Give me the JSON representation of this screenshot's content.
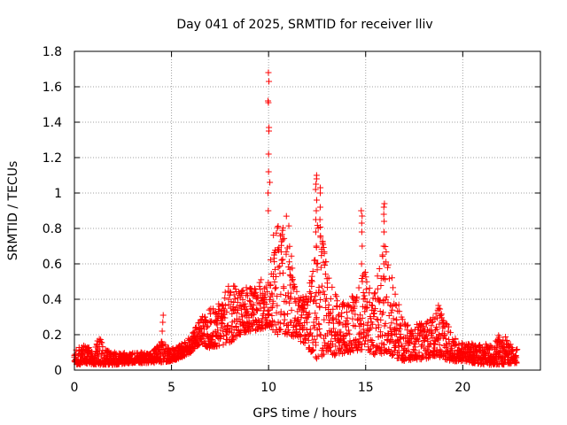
{
  "chart_data": {
    "type": "scatter",
    "title": "Day 041 of 2025, SRMTID for receiver lliv",
    "xlabel": "GPS time / hours",
    "ylabel": "SRMTID / TECUs",
    "xlim": [
      0,
      24
    ],
    "ylim": [
      0,
      1.8
    ],
    "xticks": [
      0,
      5,
      10,
      15,
      20
    ],
    "xtick_labels": [
      "0",
      "5",
      "10",
      "15",
      "20"
    ],
    "yticks": [
      0,
      0.2,
      0.4,
      0.6,
      0.8,
      1.0,
      1.2,
      1.4,
      1.6,
      1.8
    ],
    "ytick_labels": [
      "0",
      "0.2",
      "0.4",
      "0.6",
      "0.8",
      "1",
      "1.2",
      "1.4",
      "1.6",
      "1.8"
    ],
    "grid": true,
    "marker": "+",
    "color": "#ff0000",
    "envelope": {
      "description": "approximate upper/lower bounds of the plotted point cloud in data units",
      "upper": [
        [
          0,
          0.12
        ],
        [
          0.5,
          0.14
        ],
        [
          1,
          0.13
        ],
        [
          1.3,
          0.19
        ],
        [
          1.5,
          0.12
        ],
        [
          2,
          0.1
        ],
        [
          3,
          0.1
        ],
        [
          4,
          0.1
        ],
        [
          4.5,
          0.18
        ],
        [
          5,
          0.12
        ],
        [
          5.5,
          0.15
        ],
        [
          6,
          0.2
        ],
        [
          6.5,
          0.3
        ],
        [
          7,
          0.35
        ],
        [
          7.5,
          0.38
        ],
        [
          8,
          0.5
        ],
        [
          8.5,
          0.45
        ],
        [
          9,
          0.48
        ],
        [
          9.5,
          0.52
        ],
        [
          10,
          0.5
        ],
        [
          10.3,
          0.88
        ],
        [
          10.6,
          0.8
        ],
        [
          11,
          0.9
        ],
        [
          11.3,
          0.5
        ],
        [
          11.6,
          0.4
        ],
        [
          12,
          0.45
        ],
        [
          12.3,
          0.6
        ],
        [
          12.6,
          0.9
        ],
        [
          13,
          0.6
        ],
        [
          13.5,
          0.42
        ],
        [
          14,
          0.38
        ],
        [
          14.5,
          0.45
        ],
        [
          15,
          0.6
        ],
        [
          15.3,
          0.4
        ],
        [
          15.6,
          0.55
        ],
        [
          16,
          0.7
        ],
        [
          16.5,
          0.45
        ],
        [
          17,
          0.28
        ],
        [
          17.5,
          0.25
        ],
        [
          18,
          0.28
        ],
        [
          18.5,
          0.3
        ],
        [
          18.8,
          0.38
        ],
        [
          19,
          0.3
        ],
        [
          19.5,
          0.2
        ],
        [
          20,
          0.15
        ],
        [
          21,
          0.15
        ],
        [
          21.5,
          0.14
        ],
        [
          22,
          0.22
        ],
        [
          22.5,
          0.14
        ],
        [
          22.8,
          0.12
        ]
      ],
      "lower": [
        [
          0,
          0.03
        ],
        [
          1,
          0.03
        ],
        [
          2,
          0.03
        ],
        [
          3,
          0.04
        ],
        [
          4,
          0.04
        ],
        [
          5,
          0.05
        ],
        [
          5.5,
          0.07
        ],
        [
          6,
          0.1
        ],
        [
          6.5,
          0.15
        ],
        [
          7,
          0.12
        ],
        [
          7.5,
          0.14
        ],
        [
          8,
          0.15
        ],
        [
          8.5,
          0.2
        ],
        [
          9,
          0.22
        ],
        [
          9.5,
          0.22
        ],
        [
          10,
          0.25
        ],
        [
          10.5,
          0.2
        ],
        [
          11,
          0.2
        ],
        [
          11.5,
          0.18
        ],
        [
          12,
          0.12
        ],
        [
          12.5,
          0.06
        ],
        [
          13,
          0.1
        ],
        [
          13.5,
          0.08
        ],
        [
          14,
          0.1
        ],
        [
          14.5,
          0.1
        ],
        [
          15,
          0.12
        ],
        [
          15.5,
          0.08
        ],
        [
          16,
          0.1
        ],
        [
          16.5,
          0.07
        ],
        [
          17,
          0.05
        ],
        [
          17.5,
          0.06
        ],
        [
          18,
          0.06
        ],
        [
          18.5,
          0.08
        ],
        [
          19,
          0.06
        ],
        [
          19.5,
          0.05
        ],
        [
          20,
          0.05
        ],
        [
          21,
          0.03
        ],
        [
          22,
          0.03
        ],
        [
          22.8,
          0.04
        ]
      ]
    },
    "spikes": [
      {
        "x": 10.0,
        "values": [
          0.9,
          1.0,
          1.12,
          1.22,
          1.35,
          1.37,
          1.51,
          1.52,
          1.63,
          1.68
        ]
      },
      {
        "x": 10.05,
        "values": [
          1.06
        ]
      },
      {
        "x": 12.45,
        "values": [
          0.6,
          0.7,
          0.78,
          0.85,
          0.9,
          0.96,
          1.02,
          1.05,
          1.08,
          1.1
        ]
      },
      {
        "x": 12.65,
        "values": [
          0.75,
          0.85,
          0.92,
          1.0,
          1.03
        ]
      },
      {
        "x": 14.8,
        "values": [
          0.5,
          0.6,
          0.7,
          0.78,
          0.83,
          0.87,
          0.9
        ]
      },
      {
        "x": 15.95,
        "values": [
          0.6,
          0.7,
          0.78,
          0.84,
          0.88,
          0.92,
          0.94
        ]
      },
      {
        "x": 4.55,
        "values": [
          0.22,
          0.27,
          0.31
        ]
      }
    ]
  }
}
